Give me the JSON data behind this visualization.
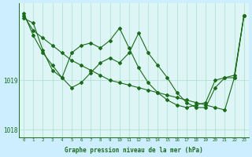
{
  "xlabel": "Graphe pression niveau de la mer (hPa)",
  "background_color": "#cceeff",
  "plot_bg_color": "#ddf5f5",
  "line_color": "#1a6b1a",
  "grid_color": "#aaddcc",
  "x_ticks": [
    0,
    1,
    2,
    3,
    4,
    5,
    6,
    7,
    8,
    9,
    10,
    11,
    12,
    13,
    14,
    15,
    16,
    17,
    18,
    19,
    20,
    21,
    22,
    23
  ],
  "ylim": [
    1017.85,
    1020.55
  ],
  "yticks": [
    1018,
    1019
  ],
  "series": [
    [
      1020.35,
      1019.9,
      1019.55,
      1019.3,
      1019.05,
      1018.85,
      1018.95,
      1019.15,
      1019.35,
      1019.45,
      1019.35,
      1019.55,
      1019.95,
      1019.55,
      1019.3,
      1019.05,
      1018.75,
      1018.55,
      1018.45,
      1018.45,
      1018.85,
      1019.05,
      1019.05,
      1020.3
    ],
    [
      1020.3,
      1020.0,
      1019.85,
      1019.7,
      1019.55,
      1019.4,
      1019.3,
      1019.2,
      1019.1,
      1019.0,
      1018.95,
      1018.9,
      1018.85,
      1018.8,
      1018.75,
      1018.7,
      1018.65,
      1018.6,
      1018.55,
      1018.5,
      1018.45,
      1018.4,
      1019.05,
      1020.3
    ],
    [
      1020.25,
      1020.15,
      1019.6,
      1019.2,
      1019.05,
      1019.55,
      1019.7,
      1019.75,
      1019.65,
      1019.8,
      1020.05,
      1019.65,
      1019.25,
      1018.95,
      1018.75,
      1018.6,
      1018.5,
      1018.45,
      1018.5,
      1018.55,
      1019.0,
      1019.05,
      1019.1,
      1020.3
    ]
  ]
}
